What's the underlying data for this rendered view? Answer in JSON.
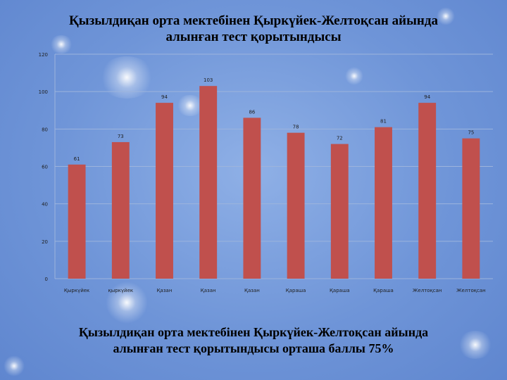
{
  "header": {
    "title_line1": "Қызылдиқан орта мектебінен Қыркүйек-Желтоқсан айында",
    "title_line2": "алынған тест қорытындысы"
  },
  "footer": {
    "summary_line1": "Қызылдиқан орта мектебінен Қыркүйек-Желтоқсан айында",
    "summary_line2": "алынған тест қорытындысы  орташа  баллы  75%"
  },
  "colors": {
    "bar": "#c0504d",
    "grid": "#9db4dc",
    "axis_text": "#1f1f1f"
  },
  "chart_data": {
    "type": "bar",
    "categories": [
      "Қыркүйек",
      "қыркүйек",
      "Қазан",
      "Қазан",
      "Қазан",
      "Қараша",
      "Қараша",
      "Қараша",
      "Желтоқсан",
      "Желтоқсан"
    ],
    "values": [
      61,
      73,
      94,
      103,
      86,
      78,
      72,
      81,
      94,
      75
    ],
    "ylim": [
      0,
      120
    ],
    "yticks": [
      0,
      20,
      40,
      60,
      80,
      100,
      120
    ],
    "grid": true,
    "data_labels": true
  }
}
